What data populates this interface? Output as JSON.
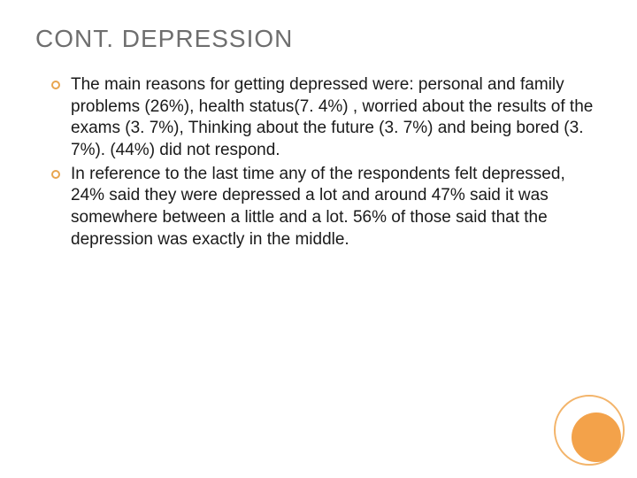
{
  "slide": {
    "title": "CONT. DEPRESSION",
    "title_color": "#6e6e6e",
    "title_fontsize": 28,
    "background_color": "#ffffff",
    "bullet_marker": {
      "shape": "hollow-circle",
      "border_color": "#e8a54f",
      "border_width": 2,
      "size": 10
    },
    "body_fontsize": 19,
    "body_color": "#1a1a1a",
    "bullets": [
      "The main reasons for getting depressed were: personal and family problems (26%), health status(7. 4%) , worried about the results of the exams (3. 7%), Thinking about the future (3. 7%) and being bored (3. 7%). (44%) did not respond.",
      "In reference to the last time any of the respondents felt depressed, 24% said they were depressed a lot and around 47% said it was somewhere between a little and a lot. 56% of those said that the depression was exactly in the middle."
    ],
    "decoration": {
      "outer_ring_color": "#f3b46a",
      "outer_ring_diameter": 80,
      "inner_circle_color": "#f3a24a",
      "inner_circle_diameter": 56,
      "position": "bottom-right"
    }
  }
}
